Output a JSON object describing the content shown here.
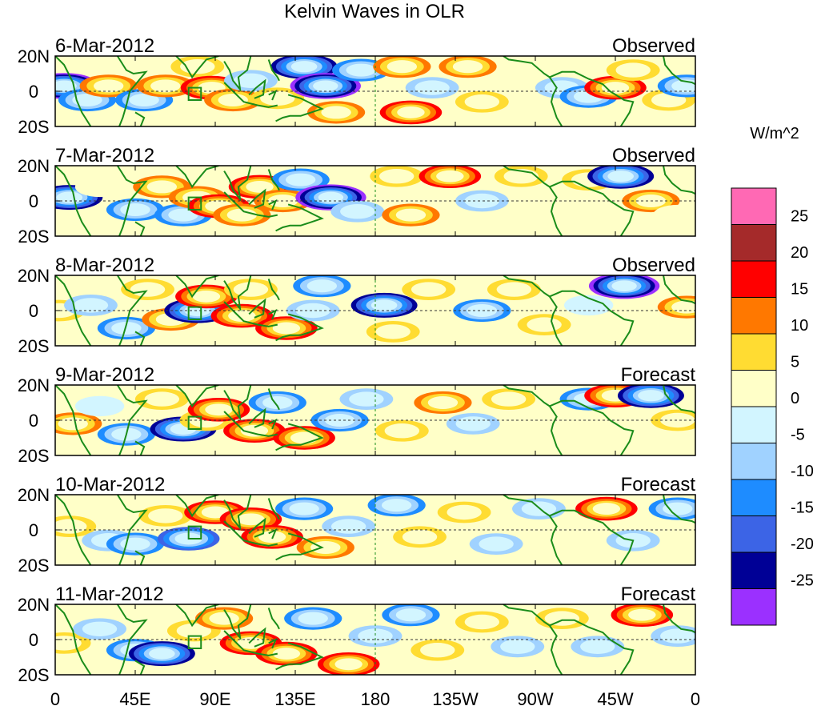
{
  "chart_data": {
    "type": "heatmap",
    "title": "Kelvin Waves in OLR",
    "colorbar": {
      "unit_label": "W/m^2",
      "colors": [
        "#9b30ff",
        "#000096",
        "#3c64e6",
        "#1e8cff",
        "#a0d2ff",
        "#d2f5ff",
        "#ffffc8",
        "#ffdc32",
        "#ff7800",
        "#ff0000",
        "#a52a2a",
        "#ff69b4"
      ],
      "tick_labels": [
        "-25",
        "-20",
        "-15",
        "-10",
        "-5",
        "0",
        "5",
        "10",
        "15",
        "20",
        "25"
      ]
    },
    "x_axis": {
      "tick_labels": [
        "0",
        "45E",
        "90E",
        "135E",
        "180",
        "135W",
        "90W",
        "45W",
        "0"
      ],
      "ticks_lon": [
        0,
        45,
        90,
        135,
        180,
        225,
        270,
        315,
        360
      ]
    },
    "y_axis": {
      "tick_labels": [
        "20N",
        "0",
        "20S"
      ],
      "ticks_lat": [
        20,
        0,
        -20
      ]
    },
    "panels": [
      {
        "date": "6-Mar-2012",
        "status": "Observed",
        "cells": [
          {
            "lon": 5,
            "lat": 3,
            "value": -27
          },
          {
            "lon": 18,
            "lat": -5,
            "value": -12
          },
          {
            "lon": 30,
            "lat": 3,
            "value": 13
          },
          {
            "lon": 50,
            "lat": -5,
            "value": -15
          },
          {
            "lon": 62,
            "lat": 3,
            "value": 14
          },
          {
            "lon": 80,
            "lat": 14,
            "value": 10
          },
          {
            "lon": 88,
            "lat": 2,
            "value": 20
          },
          {
            "lon": 100,
            "lat": -5,
            "value": 15
          },
          {
            "lon": 110,
            "lat": 6,
            "value": -10
          },
          {
            "lon": 125,
            "lat": -4,
            "value": 7
          },
          {
            "lon": 140,
            "lat": 14,
            "value": -22
          },
          {
            "lon": 152,
            "lat": 3,
            "value": -28
          },
          {
            "lon": 158,
            "lat": -12,
            "value": 15
          },
          {
            "lon": 172,
            "lat": 12,
            "value": -12
          },
          {
            "lon": 195,
            "lat": 14,
            "value": 12
          },
          {
            "lon": 200,
            "lat": -12,
            "value": 20
          },
          {
            "lon": 212,
            "lat": 2,
            "value": -8
          },
          {
            "lon": 232,
            "lat": 14,
            "value": 14
          },
          {
            "lon": 240,
            "lat": -6,
            "value": 10
          },
          {
            "lon": 260,
            "lat": 6,
            "value": 5
          },
          {
            "lon": 285,
            "lat": 2,
            "value": -6
          },
          {
            "lon": 300,
            "lat": -3,
            "value": -15
          },
          {
            "lon": 315,
            "lat": 2,
            "value": 20
          },
          {
            "lon": 325,
            "lat": 12,
            "value": 10
          },
          {
            "lon": 345,
            "lat": -5,
            "value": 7
          },
          {
            "lon": 355,
            "lat": 3,
            "value": -14
          }
        ]
      },
      {
        "date": "7-Mar-2012",
        "status": "Observed",
        "cells": [
          {
            "lon": 8,
            "lat": 2,
            "value": -22
          },
          {
            "lon": 25,
            "lat": 8,
            "value": 5
          },
          {
            "lon": 45,
            "lat": -5,
            "value": -15
          },
          {
            "lon": 60,
            "lat": 8,
            "value": 12
          },
          {
            "lon": 72,
            "lat": -8,
            "value": -12
          },
          {
            "lon": 80,
            "lat": 2,
            "value": 14
          },
          {
            "lon": 92,
            "lat": -3,
            "value": 20
          },
          {
            "lon": 105,
            "lat": -8,
            "value": 12
          },
          {
            "lon": 115,
            "lat": 8,
            "value": 16
          },
          {
            "lon": 128,
            "lat": 0,
            "value": 15
          },
          {
            "lon": 138,
            "lat": 12,
            "value": -12
          },
          {
            "lon": 155,
            "lat": 2,
            "value": -28
          },
          {
            "lon": 170,
            "lat": -6,
            "value": -10
          },
          {
            "lon": 192,
            "lat": 14,
            "value": 10
          },
          {
            "lon": 200,
            "lat": -8,
            "value": 12
          },
          {
            "lon": 222,
            "lat": 14,
            "value": 18
          },
          {
            "lon": 240,
            "lat": 0,
            "value": -8
          },
          {
            "lon": 262,
            "lat": 14,
            "value": 8
          },
          {
            "lon": 300,
            "lat": 12,
            "value": 6
          },
          {
            "lon": 318,
            "lat": 14,
            "value": -25
          },
          {
            "lon": 335,
            "lat": 0,
            "value": 12
          },
          {
            "lon": 350,
            "lat": -8,
            "value": 5
          }
        ]
      },
      {
        "date": "8-Mar-2012",
        "status": "Observed",
        "cells": [
          {
            "lon": 2,
            "lat": 0,
            "value": 8
          },
          {
            "lon": 20,
            "lat": 3,
            "value": -10
          },
          {
            "lon": 40,
            "lat": -10,
            "value": -12
          },
          {
            "lon": 52,
            "lat": 12,
            "value": 7
          },
          {
            "lon": 65,
            "lat": -5,
            "value": 15
          },
          {
            "lon": 80,
            "lat": 0,
            "value": -22
          },
          {
            "lon": 85,
            "lat": 8,
            "value": 20
          },
          {
            "lon": 105,
            "lat": -3,
            "value": 18
          },
          {
            "lon": 110,
            "lat": 12,
            "value": 8
          },
          {
            "lon": 130,
            "lat": -10,
            "value": 18
          },
          {
            "lon": 145,
            "lat": 0,
            "value": -10
          },
          {
            "lon": 150,
            "lat": 14,
            "value": -12
          },
          {
            "lon": 185,
            "lat": 3,
            "value": -25
          },
          {
            "lon": 190,
            "lat": -12,
            "value": 10
          },
          {
            "lon": 210,
            "lat": 12,
            "value": 10
          },
          {
            "lon": 240,
            "lat": 0,
            "value": -12
          },
          {
            "lon": 258,
            "lat": 12,
            "value": 8
          },
          {
            "lon": 275,
            "lat": -8,
            "value": 6
          },
          {
            "lon": 300,
            "lat": 3,
            "value": -5
          },
          {
            "lon": 320,
            "lat": 14,
            "value": -26
          },
          {
            "lon": 340,
            "lat": -5,
            "value": 5
          },
          {
            "lon": 355,
            "lat": 2,
            "value": 12
          }
        ]
      },
      {
        "date": "9-Mar-2012",
        "status": "Forecast",
        "cells": [
          {
            "lon": 10,
            "lat": -2,
            "value": 14
          },
          {
            "lon": 25,
            "lat": 8,
            "value": -5
          },
          {
            "lon": 40,
            "lat": -8,
            "value": -12
          },
          {
            "lon": 60,
            "lat": 12,
            "value": 7
          },
          {
            "lon": 72,
            "lat": -5,
            "value": -22
          },
          {
            "lon": 85,
            "lat": 0,
            "value": 6
          },
          {
            "lon": 92,
            "lat": 6,
            "value": 20
          },
          {
            "lon": 112,
            "lat": -6,
            "value": 18
          },
          {
            "lon": 125,
            "lat": 10,
            "value": -12
          },
          {
            "lon": 140,
            "lat": -10,
            "value": 16
          },
          {
            "lon": 160,
            "lat": 0,
            "value": -12
          },
          {
            "lon": 175,
            "lat": 12,
            "value": -10
          },
          {
            "lon": 195,
            "lat": -6,
            "value": 8
          },
          {
            "lon": 218,
            "lat": 10,
            "value": 12
          },
          {
            "lon": 235,
            "lat": -2,
            "value": -8
          },
          {
            "lon": 255,
            "lat": 12,
            "value": 10
          },
          {
            "lon": 275,
            "lat": -8,
            "value": 5
          },
          {
            "lon": 300,
            "lat": 12,
            "value": -14
          },
          {
            "lon": 315,
            "lat": 14,
            "value": 20
          },
          {
            "lon": 335,
            "lat": 14,
            "value": -25
          },
          {
            "lon": 350,
            "lat": 0,
            "value": 7
          }
        ]
      },
      {
        "date": "10-Mar-2012",
        "status": "Forecast",
        "cells": [
          {
            "lon": 8,
            "lat": 2,
            "value": 6
          },
          {
            "lon": 30,
            "lat": -6,
            "value": -10
          },
          {
            "lon": 45,
            "lat": -8,
            "value": -14
          },
          {
            "lon": 62,
            "lat": 8,
            "value": 8
          },
          {
            "lon": 75,
            "lat": -5,
            "value": -16
          },
          {
            "lon": 90,
            "lat": 10,
            "value": 16
          },
          {
            "lon": 110,
            "lat": 6,
            "value": 18
          },
          {
            "lon": 122,
            "lat": -4,
            "value": 20
          },
          {
            "lon": 140,
            "lat": 12,
            "value": -14
          },
          {
            "lon": 152,
            "lat": -10,
            "value": 14
          },
          {
            "lon": 165,
            "lat": 2,
            "value": -10
          },
          {
            "lon": 192,
            "lat": 14,
            "value": -12
          },
          {
            "lon": 205,
            "lat": -4,
            "value": 10
          },
          {
            "lon": 230,
            "lat": 10,
            "value": 8
          },
          {
            "lon": 248,
            "lat": -8,
            "value": -6
          },
          {
            "lon": 272,
            "lat": 12,
            "value": -8
          },
          {
            "lon": 290,
            "lat": 0,
            "value": 5
          },
          {
            "lon": 310,
            "lat": 12,
            "value": 20
          },
          {
            "lon": 325,
            "lat": -6,
            "value": -6
          },
          {
            "lon": 350,
            "lat": 12,
            "value": -14
          }
        ]
      },
      {
        "date": "11-Mar-2012",
        "status": "Forecast",
        "cells": [
          {
            "lon": 5,
            "lat": -2,
            "value": 8
          },
          {
            "lon": 25,
            "lat": 6,
            "value": -8
          },
          {
            "lon": 45,
            "lat": -6,
            "value": -14
          },
          {
            "lon": 60,
            "lat": -8,
            "value": -25
          },
          {
            "lon": 78,
            "lat": 5,
            "value": 7
          },
          {
            "lon": 95,
            "lat": 12,
            "value": 14
          },
          {
            "lon": 110,
            "lat": -2,
            "value": 16
          },
          {
            "lon": 130,
            "lat": -8,
            "value": 18
          },
          {
            "lon": 145,
            "lat": 12,
            "value": -12
          },
          {
            "lon": 165,
            "lat": -14,
            "value": 20
          },
          {
            "lon": 180,
            "lat": 2,
            "value": -10
          },
          {
            "lon": 200,
            "lat": 14,
            "value": -12
          },
          {
            "lon": 215,
            "lat": -6,
            "value": 8
          },
          {
            "lon": 240,
            "lat": 10,
            "value": 10
          },
          {
            "lon": 260,
            "lat": -4,
            "value": -8
          },
          {
            "lon": 285,
            "lat": 12,
            "value": 6
          },
          {
            "lon": 305,
            "lat": -4,
            "value": -6
          },
          {
            "lon": 330,
            "lat": 14,
            "value": 18
          },
          {
            "lon": 350,
            "lat": 2,
            "value": -10
          }
        ]
      }
    ]
  }
}
